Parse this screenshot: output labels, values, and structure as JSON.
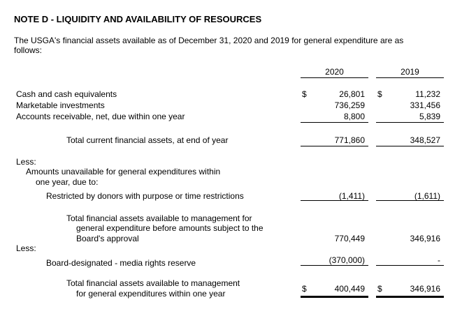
{
  "title": "NOTE D - LIQUIDITY AND AVAILABILITY OF RESOURCES",
  "intro": [
    "The USGA's financial assets available as of December 31, 2020 and 2019 for general expenditure are as",
    "follows:"
  ],
  "years": [
    "2020",
    "2019"
  ],
  "currency": "$",
  "rows": {
    "cash": {
      "label": "Cash and cash equivalents",
      "v2020": "26,801",
      "v2019": "11,232"
    },
    "investments": {
      "label": "Marketable investments",
      "v2020": "736,259",
      "v2019": "331,456"
    },
    "receivable": {
      "label": "Accounts receivable, net, due within one year",
      "v2020": "8,800",
      "v2019": "5,839"
    },
    "total_current": {
      "label": "Total current financial assets, at end of year",
      "v2020": "771,860",
      "v2019": "348,527"
    },
    "less1": "Less:",
    "unavailable": [
      "Amounts unavailable for general expenditures within",
      "one year, due to:"
    ],
    "restricted": {
      "label": "Restricted by donors with purpose or time restrictions",
      "v2020": "(1,411)",
      "v2019": "(1,611)"
    },
    "before_board": {
      "label": [
        "Total financial assets available to management for",
        "general expenditure before amounts subject to the",
        "Board's approval"
      ],
      "v2020": "770,449",
      "v2019": "346,916"
    },
    "less2": "Less:",
    "board": {
      "label": "Board-designated - media rights reserve",
      "v2020": "(370,000)",
      "v2019": "-"
    },
    "total_available": {
      "label": [
        "Total financial assets available to management",
        "for general expenditures within one year"
      ],
      "v2020": "400,449",
      "v2019": "346,916"
    }
  }
}
